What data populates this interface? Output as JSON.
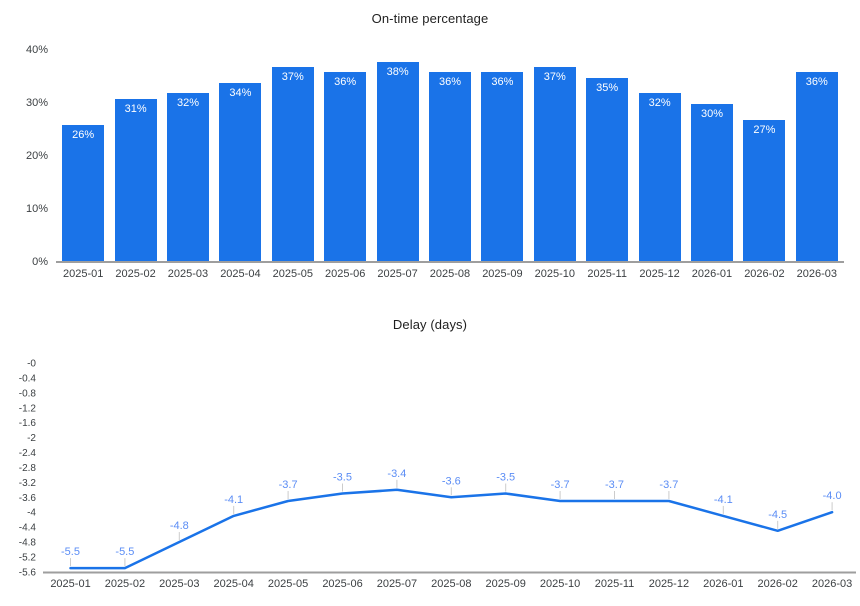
{
  "page": {
    "background": "#ffffff"
  },
  "colors": {
    "series_blue": "#1a73e8",
    "annotation_blue": "#5b8df5",
    "stem_gray": "#cccccc",
    "axis_line": "#9e9e9e",
    "axis_text": "#3c4043",
    "title_text": "#1f1f1f",
    "bar_label": "#ffffff"
  },
  "chart_data": [
    {
      "type": "bar",
      "title": "On-time percentage",
      "categories": [
        "2025-01",
        "2025-02",
        "2025-03",
        "2025-04",
        "2025-05",
        "2025-06",
        "2025-07",
        "2025-08",
        "2025-09",
        "2025-10",
        "2025-11",
        "2025-12",
        "2026-01",
        "2026-02",
        "2026-03"
      ],
      "values": [
        26,
        31,
        32,
        34,
        37,
        36,
        38,
        36,
        36,
        37,
        35,
        32,
        30,
        27,
        36
      ],
      "bar_labels": [
        "26%",
        "31%",
        "32%",
        "34%",
        "37%",
        "36%",
        "38%",
        "36%",
        "36%",
        "37%",
        "35%",
        "32%",
        "30%",
        "27%",
        "36%"
      ],
      "y_ticks": [
        "0%",
        "10%",
        "20%",
        "30%",
        "40%"
      ],
      "y_tick_values": [
        0,
        10,
        20,
        30,
        40
      ],
      "ylim": [
        0,
        40
      ],
      "xlabel": "",
      "ylabel": "",
      "grid": false,
      "legend": "none"
    },
    {
      "type": "line",
      "title": "Delay (days)",
      "categories": [
        "2025-01",
        "2025-02",
        "2025-03",
        "2025-04",
        "2025-05",
        "2025-06",
        "2025-07",
        "2025-08",
        "2025-09",
        "2025-10",
        "2025-11",
        "2025-12",
        "2026-01",
        "2026-02",
        "2026-03"
      ],
      "values": [
        -5.5,
        -5.5,
        -4.8,
        -4.1,
        -3.7,
        -3.5,
        -3.4,
        -3.6,
        -3.5,
        -3.7,
        -3.7,
        -3.7,
        -4.1,
        -4.5,
        -4.0
      ],
      "point_labels": [
        "-5.5",
        "-5.5",
        "-4.8",
        "-4.1",
        "-3.7",
        "-3.5",
        "-3.4",
        "-3.6",
        "-3.5",
        "-3.7",
        "-3.7",
        "-3.7",
        "-4.1",
        "-4.5",
        "-4.0"
      ],
      "y_ticks": [
        "-0",
        "-0.4",
        "-0.8",
        "-1.2",
        "-1.6",
        "-2",
        "-2.4",
        "-2.8",
        "-3.2",
        "-3.6",
        "-4",
        "-4.4",
        "-4.8",
        "-5.2",
        "-5.6"
      ],
      "ylim": [
        -5.6,
        0
      ],
      "xlabel": "",
      "ylabel": "",
      "grid": false,
      "legend": "none"
    }
  ]
}
